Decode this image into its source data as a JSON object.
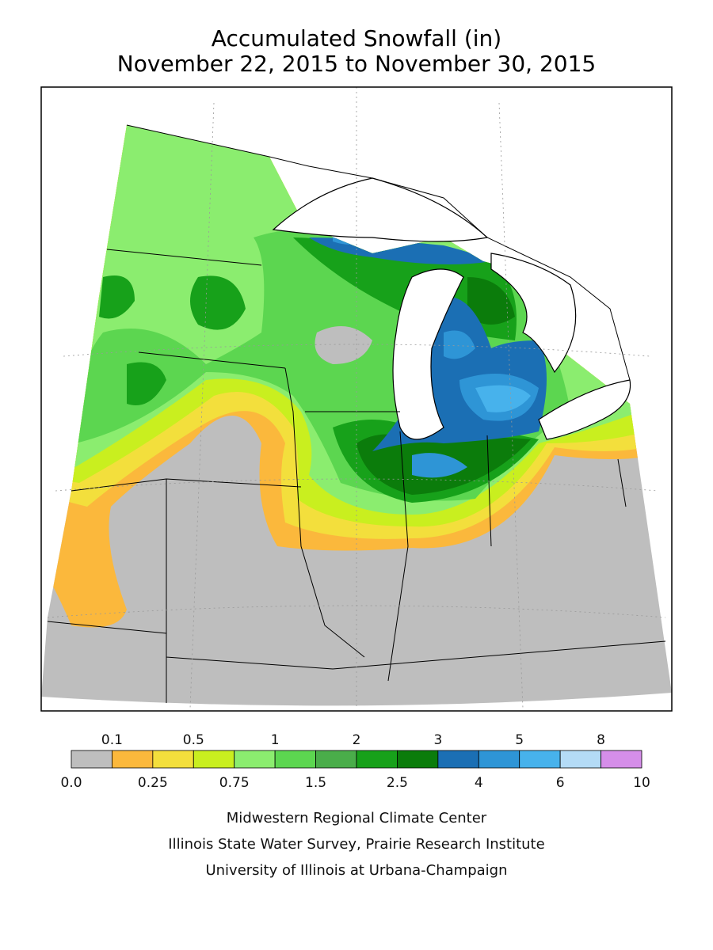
{
  "header": {
    "title": "Accumulated Snowfall (in)",
    "subtitle": "November 22, 2015 to November 30, 2015"
  },
  "legend": {
    "boundaries": [
      {
        "value": 0,
        "label": "0.0"
      },
      0.1,
      0.25,
      0.5,
      0.75,
      1,
      1.5,
      2,
      2.5,
      3,
      4,
      5,
      6,
      8,
      10
    ],
    "colors": [
      "#bebebe",
      "#fbb83c",
      "#f3df3c",
      "#c9ef1f",
      "#8bed6f",
      "#5cd650",
      "#4aad4a",
      "#17a11a",
      "#0b7c0b",
      "#1b6fb4",
      "#2e95d6",
      "#47b2ec",
      "#b4dbf6",
      "#d58ee9"
    ]
  },
  "credits": [
    "Midwestern Regional Climate Center",
    "Illinois State Water Survey, Prairie Research Institute",
    "University of Illinois at Urbana-Champaign"
  ]
}
